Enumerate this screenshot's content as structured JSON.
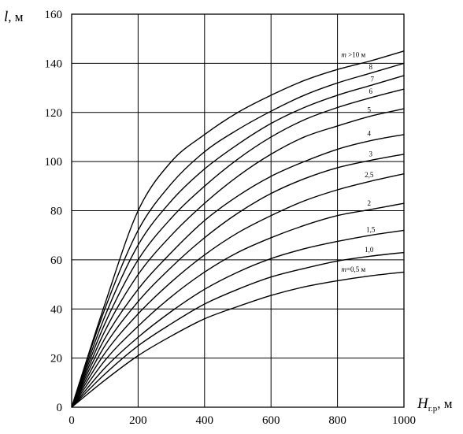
{
  "chart_data": {
    "type": "line",
    "ylabel": {
      "symbol": "l",
      "unit": ", м"
    },
    "xlabel": {
      "symbol": "H",
      "subscript": "г.р",
      "unit": ", м"
    },
    "xlim": [
      0,
      1000
    ],
    "ylim": [
      0,
      160
    ],
    "x_ticks": [
      0,
      200,
      400,
      600,
      800,
      1000
    ],
    "y_ticks": [
      0,
      20,
      40,
      60,
      80,
      100,
      120,
      140,
      160
    ],
    "grid": true,
    "line_color": "#000000",
    "x": [
      0,
      100,
      200,
      300,
      400,
      500,
      600,
      700,
      800,
      900,
      1000
    ],
    "series": [
      {
        "name": "m=0,5 м",
        "label_prefix": "m",
        "label_rest": "=0,5 м",
        "values": [
          0,
          11,
          21,
          29,
          36,
          41,
          45.5,
          49,
          51.5,
          53.5,
          55
        ]
      },
      {
        "name": "1,0",
        "label_prefix": "",
        "label_rest": "1,0",
        "values": [
          0,
          13.5,
          25,
          34,
          42,
          48,
          53,
          56.5,
          59.5,
          61.5,
          63
        ]
      },
      {
        "name": "1,5",
        "label_prefix": "",
        "label_rest": "1,5",
        "values": [
          0,
          16,
          28.5,
          39,
          48,
          55,
          60.5,
          64.5,
          67.5,
          70,
          72
        ]
      },
      {
        "name": "2",
        "label_prefix": "",
        "label_rest": "2",
        "values": [
          0,
          19,
          33,
          45,
          55,
          63,
          69,
          74,
          78,
          80.5,
          83
        ]
      },
      {
        "name": "2,5",
        "label_prefix": "",
        "label_rest": "2,5",
        "values": [
          0,
          22,
          38,
          51,
          62,
          71,
          78,
          84,
          88.5,
          92,
          95
        ]
      },
      {
        "name": "3",
        "label_prefix": "",
        "label_rest": "3",
        "values": [
          0,
          25,
          43,
          57,
          69,
          79,
          87,
          93,
          97.5,
          100.5,
          103
        ]
      },
      {
        "name": "4",
        "label_prefix": "",
        "label_rest": "4",
        "values": [
          0,
          28,
          48,
          63,
          76,
          86,
          94,
          100,
          105,
          108.5,
          111
        ]
      },
      {
        "name": "5",
        "label_prefix": "",
        "label_rest": "5",
        "values": [
          0,
          31,
          54,
          70,
          83,
          94,
          103,
          110,
          114.5,
          118.5,
          121.5
        ]
      },
      {
        "name": "6",
        "label_prefix": "",
        "label_rest": "6",
        "values": [
          0,
          34,
          60,
          77,
          90,
          101,
          110,
          117,
          122,
          126,
          129.5
        ]
      },
      {
        "name": "7",
        "label_prefix": "",
        "label_rest": "7",
        "values": [
          0,
          37,
          66,
          84,
          97,
          107,
          115.5,
          122,
          127,
          131,
          135
        ]
      },
      {
        "name": "8",
        "label_prefix": "",
        "label_rest": "8",
        "values": [
          0,
          40,
          72,
          91,
          104,
          113,
          120.5,
          127,
          132,
          136,
          140
        ]
      },
      {
        "name": "m >10 м",
        "label_prefix": "m",
        "label_rest": " >10 м",
        "values": [
          0,
          42,
          80,
          100,
          111,
          120,
          127,
          133,
          137.5,
          141,
          145
        ]
      }
    ]
  }
}
